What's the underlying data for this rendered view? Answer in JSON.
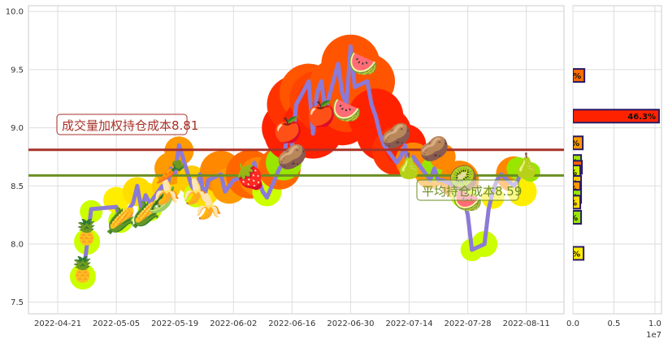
{
  "chart_data": [
    {
      "type": "line",
      "title": "",
      "xlabel": "",
      "ylabel": "",
      "x_tick_labels": [
        "2022-04-21",
        "2022-05-05",
        "2022-05-19",
        "2022-06-02",
        "2022-06-16",
        "2022-06-30",
        "2022-07-14",
        "2022-07-28",
        "2022-08-11"
      ],
      "y_tick_labels": [
        "7.5",
        "8.0",
        "8.5",
        "9.0",
        "9.5",
        "10.0"
      ],
      "xlim": [
        "2022-04-14",
        "2022-08-20"
      ],
      "ylim": [
        7.4,
        10.05
      ],
      "grid": true,
      "series": [
        {
          "name": "",
          "color": "#8c7ad6",
          "x": [
            "2022-04-27",
            "2022-04-28",
            "2022-04-29",
            "2022-05-05",
            "2022-05-06",
            "2022-05-09",
            "2022-05-10",
            "2022-05-11",
            "2022-05-12",
            "2022-05-13",
            "2022-05-16",
            "2022-05-17",
            "2022-05-18",
            "2022-05-19",
            "2022-05-20",
            "2022-05-23",
            "2022-05-24",
            "2022-05-25",
            "2022-05-26",
            "2022-05-27",
            "2022-05-30",
            "2022-05-31",
            "2022-06-01",
            "2022-06-02",
            "2022-06-06",
            "2022-06-07",
            "2022-06-08",
            "2022-06-09",
            "2022-06-10",
            "2022-06-13",
            "2022-06-14",
            "2022-06-15",
            "2022-06-16",
            "2022-06-17",
            "2022-06-20",
            "2022-06-21",
            "2022-06-22",
            "2022-06-23",
            "2022-06-24",
            "2022-06-27",
            "2022-06-28",
            "2022-06-29",
            "2022-06-30",
            "2022-07-01",
            "2022-07-04",
            "2022-07-05",
            "2022-07-06",
            "2022-07-07",
            "2022-07-08",
            "2022-07-11",
            "2022-07-12",
            "2022-07-13",
            "2022-07-14",
            "2022-07-15",
            "2022-07-18",
            "2022-07-19",
            "2022-07-20",
            "2022-07-21",
            "2022-07-22",
            "2022-07-25",
            "2022-07-26",
            "2022-07-27",
            "2022-07-28",
            "2022-07-29",
            "2022-08-01",
            "2022-08-02",
            "2022-08-03",
            "2022-08-04",
            "2022-08-05",
            "2022-08-08",
            "2022-08-09",
            "2022-08-10",
            "2022-08-11",
            "2022-08-12"
          ],
          "values": [
            7.7,
            8.0,
            8.3,
            8.32,
            8.2,
            8.35,
            8.5,
            8.3,
            8.42,
            8.35,
            8.5,
            8.45,
            8.65,
            8.6,
            8.85,
            8.5,
            8.45,
            8.6,
            8.4,
            8.55,
            8.6,
            8.45,
            8.5,
            8.55,
            8.6,
            8.7,
            8.55,
            8.45,
            8.4,
            8.65,
            8.7,
            9.0,
            8.85,
            9.2,
            9.4,
            8.95,
            9.3,
            9.4,
            9.15,
            9.55,
            9.3,
            9.2,
            9.7,
            9.35,
            9.4,
            9.2,
            9.1,
            8.95,
            8.85,
            8.7,
            8.75,
            8.85,
            8.6,
            8.75,
            8.6,
            8.55,
            8.65,
            8.55,
            8.55,
            8.5,
            8.45,
            8.4,
            8.25,
            7.95,
            8.0,
            8.3,
            8.45,
            8.55,
            8.6,
            8.5,
            8.55,
            8.65,
            8.6,
            8.62
          ]
        }
      ],
      "reference_lines": [
        {
          "value": 8.81,
          "color": "#a83228",
          "label": "成交量加权持仓成本8.81"
        },
        {
          "value": 8.59,
          "color": "#6b8e23",
          "label": "平均持仓成本8.59"
        }
      ]
    },
    {
      "type": "bar",
      "orientation": "horizontal",
      "title": "",
      "x_tick_labels": [
        "0.0",
        "0.5",
        "1.0"
      ],
      "x_offset_label": "1e7",
      "xlim": [
        0,
        1.08
      ],
      "bars": [
        {
          "y": 9.45,
          "value": 0.14,
          "color": "#ff6a00",
          "label": "%"
        },
        {
          "y": 9.1,
          "value": 1.05,
          "color": "#ff2200",
          "label": "46.3%"
        },
        {
          "y": 8.87,
          "value": 0.12,
          "color": "#ff9900",
          "label": "%"
        },
        {
          "y": 8.71,
          "value": 0.1,
          "color": "#99e600",
          "label": "%"
        },
        {
          "y": 8.66,
          "value": 0.11,
          "color": "#ff6600",
          "label": "%"
        },
        {
          "y": 8.62,
          "value": 0.09,
          "color": "#ccee00",
          "label": "%"
        },
        {
          "y": 8.53,
          "value": 0.1,
          "color": "#ffcc00",
          "label": "%"
        },
        {
          "y": 8.48,
          "value": 0.09,
          "color": "#ff9900",
          "label": "%"
        },
        {
          "y": 8.41,
          "value": 0.1,
          "color": "#99e600",
          "label": "%"
        },
        {
          "y": 8.36,
          "value": 0.09,
          "color": "#ffdd00",
          "label": "%"
        },
        {
          "y": 8.23,
          "value": 0.1,
          "color": "#99e600",
          "label": "%"
        },
        {
          "y": 7.92,
          "value": 0.13,
          "color": "#ffee00",
          "label": "%"
        }
      ]
    }
  ],
  "blobs": [
    {
      "d": "2022-04-27",
      "v": 7.72,
      "r": 16,
      "c": "#ccff00"
    },
    {
      "d": "2022-04-28",
      "v": 8.02,
      "r": 16,
      "c": "#ccff00"
    },
    {
      "d": "2022-04-29",
      "v": 8.28,
      "r": 14,
      "c": "#ccff00"
    },
    {
      "d": "2022-05-06",
      "v": 8.2,
      "r": 15,
      "c": "#ccff00"
    },
    {
      "d": "2022-05-05",
      "v": 8.38,
      "r": 16,
      "c": "#ffee00"
    },
    {
      "d": "2022-05-10",
      "v": 8.45,
      "r": 18,
      "c": "#ffdd00"
    },
    {
      "d": "2022-05-12",
      "v": 8.42,
      "r": 16,
      "c": "#ffdd00"
    },
    {
      "d": "2022-05-13",
      "v": 8.3,
      "r": 15,
      "c": "#ccff00"
    },
    {
      "d": "2022-05-17",
      "v": 8.5,
      "r": 18,
      "c": "#ffcc00"
    },
    {
      "d": "2022-05-18",
      "v": 8.65,
      "r": 20,
      "c": "#ff9900"
    },
    {
      "d": "2022-05-20",
      "v": 8.8,
      "r": 18,
      "c": "#ff9900"
    },
    {
      "d": "2022-05-23",
      "v": 8.55,
      "r": 18,
      "c": "#ffcc00"
    },
    {
      "d": "2022-05-24",
      "v": 8.42,
      "r": 15,
      "c": "#ccff00"
    },
    {
      "d": "2022-05-26",
      "v": 8.45,
      "r": 18,
      "c": "#ffdd00"
    },
    {
      "d": "2022-05-30",
      "v": 8.62,
      "r": 26,
      "c": "#ff8800"
    },
    {
      "d": "2022-06-01",
      "v": 8.5,
      "r": 22,
      "c": "#ff9900"
    },
    {
      "d": "2022-06-06",
      "v": 8.6,
      "r": 30,
      "c": "#ff6600"
    },
    {
      "d": "2022-06-08",
      "v": 8.58,
      "r": 24,
      "c": "#ff8800"
    },
    {
      "d": "2022-06-10",
      "v": 8.45,
      "r": 18,
      "c": "#ccff00"
    },
    {
      "d": "2022-06-13",
      "v": 8.65,
      "r": 26,
      "c": "#ff6600"
    },
    {
      "d": "2022-06-14",
      "v": 8.7,
      "r": 22,
      "c": "#99e600"
    },
    {
      "d": "2022-06-15",
      "v": 9.0,
      "r": 32,
      "c": "#ff2200"
    },
    {
      "d": "2022-06-16",
      "v": 8.95,
      "r": 34,
      "c": "#ff2200"
    },
    {
      "d": "2022-06-17",
      "v": 9.2,
      "r": 36,
      "c": "#ff3300"
    },
    {
      "d": "2022-06-20",
      "v": 9.3,
      "r": 36,
      "c": "#ff5500"
    },
    {
      "d": "2022-06-21",
      "v": 9.0,
      "r": 38,
      "c": "#ff2200"
    },
    {
      "d": "2022-06-22",
      "v": 9.25,
      "r": 34,
      "c": "#ff4400"
    },
    {
      "d": "2022-06-24",
      "v": 9.2,
      "r": 36,
      "c": "#ff3300"
    },
    {
      "d": "2022-06-27",
      "v": 9.35,
      "r": 36,
      "c": "#ff5500"
    },
    {
      "d": "2022-06-28",
      "v": 9.1,
      "r": 36,
      "c": "#ff2200"
    },
    {
      "d": "2022-06-29",
      "v": 9.2,
      "r": 34,
      "c": "#ff4400"
    },
    {
      "d": "2022-06-30",
      "v": 9.55,
      "r": 36,
      "c": "#ff5500"
    },
    {
      "d": "2022-07-01",
      "v": 9.35,
      "r": 36,
      "c": "#ff5500"
    },
    {
      "d": "2022-07-04",
      "v": 9.4,
      "r": 34,
      "c": "#ff5500"
    },
    {
      "d": "2022-07-06",
      "v": 9.1,
      "r": 34,
      "c": "#ff2200"
    },
    {
      "d": "2022-07-08",
      "v": 8.95,
      "r": 34,
      "c": "#ff2200"
    },
    {
      "d": "2022-07-11",
      "v": 8.8,
      "r": 30,
      "c": "#ff3300"
    },
    {
      "d": "2022-07-13",
      "v": 8.85,
      "r": 26,
      "c": "#ff2200"
    },
    {
      "d": "2022-07-15",
      "v": 8.72,
      "r": 22,
      "c": "#ff8800"
    },
    {
      "d": "2022-07-19",
      "v": 8.6,
      "r": 18,
      "c": "#ff9900"
    },
    {
      "d": "2022-07-20",
      "v": 8.65,
      "r": 16,
      "c": "#99e600"
    },
    {
      "d": "2022-07-22",
      "v": 8.75,
      "r": 16,
      "c": "#ff8800"
    },
    {
      "d": "2022-07-26",
      "v": 8.55,
      "r": 24,
      "c": "#ff8800"
    },
    {
      "d": "2022-07-27",
      "v": 8.42,
      "r": 16,
      "c": "#ccff00"
    },
    {
      "d": "2022-08-01",
      "v": 8.0,
      "r": 16,
      "c": "#ccff00"
    },
    {
      "d": "2022-07-29",
      "v": 7.95,
      "r": 14,
      "c": "#ccff00"
    },
    {
      "d": "2022-08-03",
      "v": 8.4,
      "r": 14,
      "c": "#ffee00"
    },
    {
      "d": "2022-08-08",
      "v": 8.6,
      "r": 22,
      "c": "#ff8800"
    },
    {
      "d": "2022-08-09",
      "v": 8.65,
      "r": 14,
      "c": "#99e600"
    },
    {
      "d": "2022-08-10",
      "v": 8.45,
      "r": 18,
      "c": "#ffee00"
    },
    {
      "d": "2022-08-12",
      "v": 8.62,
      "r": 12,
      "c": "#99e600"
    }
  ],
  "fruits": [
    {
      "d": "2022-04-27",
      "v": 7.78,
      "name": "pineapple-icon",
      "g": "🍍"
    },
    {
      "d": "2022-04-28",
      "v": 8.1,
      "name": "pineapple-icon",
      "g": "🍍"
    },
    {
      "d": "2022-05-06",
      "v": 8.2,
      "name": "corn-icon",
      "g": "🌽"
    },
    {
      "d": "2022-05-12",
      "v": 8.25,
      "name": "corn-icon",
      "g": "🌽"
    },
    {
      "d": "2022-05-16",
      "v": 8.38,
      "name": "pea-pod-icon",
      "g": "🫛"
    },
    {
      "d": "2022-05-17",
      "v": 8.45,
      "name": "banana-icon",
      "g": "🍌"
    },
    {
      "d": "2022-05-18",
      "v": 8.62,
      "name": "carrot-icon",
      "g": "🥕"
    },
    {
      "d": "2022-05-24",
      "v": 8.45,
      "name": "banana-icon",
      "g": "🍌"
    },
    {
      "d": "2022-05-27",
      "v": 8.32,
      "name": "banana-icon",
      "g": "🍌"
    },
    {
      "d": "2022-06-06",
      "v": 8.58,
      "name": "strawberry-icon",
      "g": "🍓"
    },
    {
      "d": "2022-06-15",
      "v": 8.98,
      "name": "apple-icon",
      "g": "🍎"
    },
    {
      "d": "2022-06-16",
      "v": 8.75,
      "name": "radish-icon",
      "g": "🥔"
    },
    {
      "d": "2022-06-23",
      "v": 9.12,
      "name": "apple-icon",
      "g": "🍎"
    },
    {
      "d": "2022-06-29",
      "v": 9.15,
      "name": "watermelon-slice-icon",
      "g": "🍉"
    },
    {
      "d": "2022-07-03",
      "v": 9.55,
      "name": "watermelon-slice-icon",
      "g": "🍉"
    },
    {
      "d": "2022-07-11",
      "v": 8.93,
      "name": "radish-icon",
      "g": "🥔"
    },
    {
      "d": "2022-07-14",
      "v": 8.67,
      "name": "pear-icon",
      "g": "🍐"
    },
    {
      "d": "2022-07-20",
      "v": 8.82,
      "name": "radish-icon",
      "g": "🥔"
    },
    {
      "d": "2022-07-28",
      "v": 8.38,
      "name": "watermelon-icon",
      "g": "🍉"
    },
    {
      "d": "2022-07-27",
      "v": 8.56,
      "name": "kiwi-icon",
      "g": "🥝"
    },
    {
      "d": "2022-08-11",
      "v": 8.67,
      "name": "pear-icon",
      "g": "🍐"
    }
  ]
}
